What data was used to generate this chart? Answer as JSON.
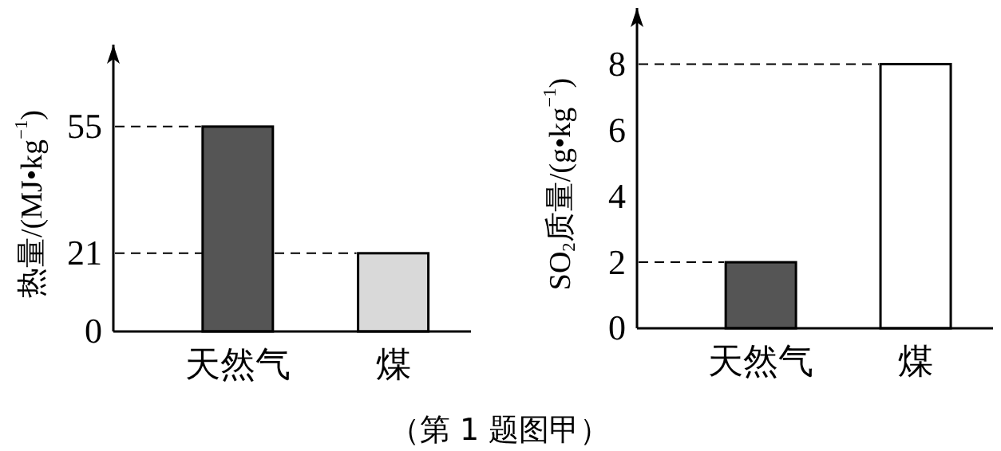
{
  "chart_data": [
    {
      "type": "bar",
      "ylabel": "热量/(MJ•kg$^{−1}$)",
      "categories": [
        "天然气",
        "煤"
      ],
      "colors": [
        "#555555",
        "#d9d9d9"
      ],
      "values": [
        55,
        21
      ],
      "ylim": [
        0,
        77
      ],
      "yticks": [
        0,
        21,
        55
      ],
      "ref_lines": [
        {
          "axis": "y",
          "value": 55,
          "line_style": "dashed"
        },
        {
          "axis": "y",
          "value": 21,
          "line_style": "dashed"
        }
      ],
      "annotations": [
        "（第 1 题图甲）"
      ]
    },
    {
      "type": "bar",
      "ylabel": "SO$_{2}$质量/(g•kg$^{−1}$)",
      "categories": [
        "天然气",
        "煤"
      ],
      "colors": [
        "#555555",
        "#ffffff"
      ],
      "values": [
        2,
        8
      ],
      "ylim": [
        0,
        9.7
      ],
      "yticks": [
        0,
        2,
        4,
        6,
        8
      ],
      "ref_lines": [
        {
          "axis": "y",
          "value": 8,
          "line_style": "dashed"
        },
        {
          "axis": "y",
          "value": 2,
          "line_style": "dashed"
        }
      ]
    }
  ]
}
